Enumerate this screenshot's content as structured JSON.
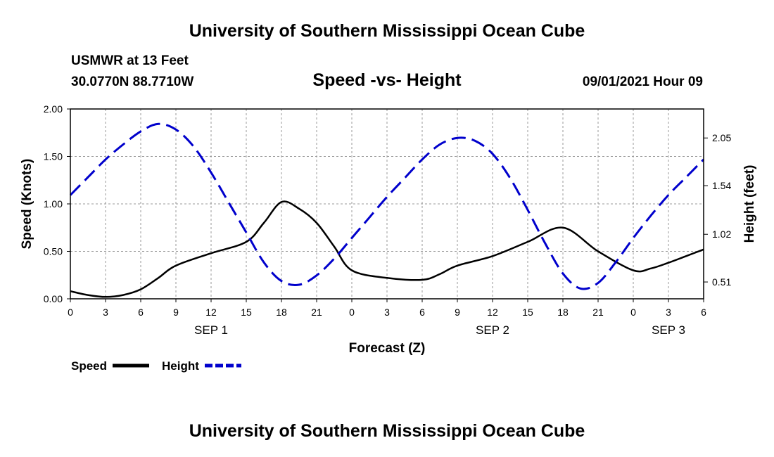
{
  "header": {
    "title": "University of Southern Mississippi Ocean Cube",
    "station": "USMWR at 13 Feet",
    "coords": "30.0770N  88.7710W",
    "chart_title": "Speed -vs- Height",
    "datetime": "09/01/2021 Hour 09"
  },
  "footer": {
    "title": "University of Southern Mississippi Ocean Cube"
  },
  "colors": {
    "speed": "#000000",
    "height": "#0000cc",
    "grid": "#999999"
  },
  "chart_data": {
    "type": "line",
    "title": "Speed -vs- Height",
    "xlabel": "Forecast (Z)",
    "ylabel": "Speed (Knots)",
    "y2label": "Height (feet)",
    "x_range_hours": [
      0,
      54
    ],
    "x_ticks": [
      0,
      3,
      6,
      9,
      12,
      15,
      18,
      21,
      24,
      27,
      30,
      33,
      36,
      39,
      42,
      45,
      48,
      51,
      54
    ],
    "x_tick_labels": [
      "0",
      "3",
      "6",
      "9",
      "12",
      "15",
      "18",
      "21",
      "0",
      "3",
      "6",
      "9",
      "12",
      "15",
      "18",
      "21",
      "0",
      "3",
      "6"
    ],
    "day_labels": [
      {
        "label": "SEP 1",
        "hour": 12
      },
      {
        "label": "SEP 2",
        "hour": 36
      },
      {
        "label": "SEP 3",
        "hour": 51
      }
    ],
    "ylim": [
      0,
      2.0
    ],
    "y_ticks": [
      0,
      0.5,
      1.0,
      1.5,
      2.0
    ],
    "y_tick_labels": [
      "0.00",
      "0.50",
      "1.00",
      "1.50",
      "2.00"
    ],
    "y2lim": [
      0.33,
      2.36
    ],
    "y2_ticks": [
      0.51,
      1.02,
      1.54,
      2.05
    ],
    "y2_tick_labels": [
      "0.51",
      "1.02",
      "1.54",
      "2.05"
    ],
    "legend": [
      {
        "name": "Speed",
        "style": "solid"
      },
      {
        "name": "Height",
        "style": "dashed"
      }
    ],
    "series": [
      {
        "name": "Speed",
        "axis": "left",
        "x": [
          0,
          1.5,
          3,
          4.5,
          6,
          7.5,
          9,
          12,
          15,
          16.5,
          18,
          19.5,
          21,
          22.5,
          24,
          27,
          30,
          31.5,
          33,
          36,
          39,
          42,
          45,
          48,
          49.5,
          51,
          52.5,
          54
        ],
        "values": [
          0.08,
          0.04,
          0.02,
          0.04,
          0.1,
          0.22,
          0.35,
          0.48,
          0.6,
          0.8,
          1.02,
          0.95,
          0.8,
          0.55,
          0.3,
          0.22,
          0.2,
          0.26,
          0.35,
          0.45,
          0.6,
          0.75,
          0.5,
          0.3,
          0.32,
          0.38,
          0.45,
          0.52
        ]
      },
      {
        "name": "Height",
        "axis": "right",
        "x": [
          0,
          1.5,
          3,
          4.5,
          6,
          7.5,
          9,
          10.5,
          12,
          13.5,
          15,
          16.5,
          18,
          19.5,
          21,
          22.5,
          24,
          25.5,
          27,
          28.5,
          30,
          31.5,
          33,
          34.5,
          36,
          37.5,
          39,
          40.5,
          42,
          43.5,
          45,
          46.5,
          48,
          49.5,
          51,
          52.5,
          54
        ],
        "values": [
          1.44,
          1.63,
          1.82,
          1.98,
          2.12,
          2.2,
          2.14,
          1.96,
          1.68,
          1.36,
          1.04,
          0.72,
          0.52,
          0.48,
          0.58,
          0.76,
          0.98,
          1.2,
          1.42,
          1.62,
          1.82,
          1.98,
          2.05,
          2.02,
          1.88,
          1.62,
          1.28,
          0.92,
          0.6,
          0.44,
          0.5,
          0.72,
          0.98,
          1.22,
          1.44,
          1.63,
          1.82
        ]
      }
    ]
  }
}
